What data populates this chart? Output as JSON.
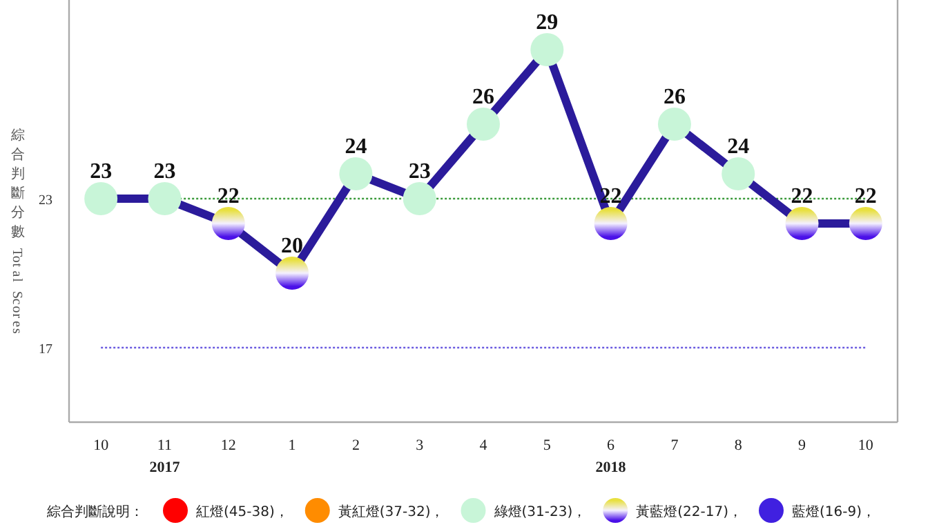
{
  "chart_data": {
    "type": "line",
    "categories": [
      "10",
      "11",
      "12",
      "1",
      "2",
      "3",
      "4",
      "5",
      "6",
      "7",
      "8",
      "9",
      "10"
    ],
    "ylabel": "綜合判斷分數 Total Scores",
    "ylim": [
      14,
      31
    ],
    "yticks": [
      17,
      23
    ],
    "legend_title": "綜合判斷說明：",
    "legend": "bottom",
    "data_labels": true,
    "grid": false,
    "series": [
      {
        "color": "#2b1b9b",
        "marker": "circle",
        "values": [
          23,
          23,
          22,
          20,
          24,
          23,
          26,
          29,
          22,
          26,
          24,
          22,
          22
        ],
        "colors": [
          "#c8f5d8",
          "#c8f5d8",
          "#e8e040",
          "#e8e040",
          "#c8f5d8",
          "#c8f5d8",
          "#c8f5d8",
          "#c8f5d8",
          "#e8e040",
          "#c8f5d8",
          "#c8f5d8",
          "#e8e040",
          "#e8e040"
        ]
      },
      {
        "name": "紅燈(45-38)，",
        "color": "#ff0000",
        "marker": "circle",
        "values": [
          null,
          null,
          null,
          null,
          null,
          null,
          null,
          null,
          null,
          null,
          null,
          null,
          null
        ]
      },
      {
        "name": "黃紅燈(37-32)，",
        "color": "#ff8c00",
        "marker": "circle",
        "values": [
          null,
          null,
          null,
          null,
          null,
          null,
          null,
          null,
          null,
          null,
          null,
          null,
          null
        ]
      },
      {
        "name": "綠燈(31-23)，",
        "color": "#c8f5d8",
        "marker": "circle",
        "values": [
          null,
          null,
          null,
          null,
          null,
          null,
          null,
          null,
          null,
          null,
          null,
          null,
          null
        ]
      },
      {
        "name": "黃藍燈(22-17)，",
        "color": "#e8e040",
        "marker": "circle",
        "values": [
          null,
          null,
          null,
          null,
          null,
          null,
          null,
          null,
          null,
          null,
          null,
          null,
          null
        ]
      },
      {
        "name": "藍燈(16-9)，",
        "color": "#4020e0",
        "marker": "circle",
        "values": [
          null,
          null,
          null,
          null,
          null,
          null,
          null,
          null,
          null,
          null,
          null,
          null,
          null
        ]
      }
    ],
    "ref_lines": [
      {
        "axis": "y",
        "value": 23,
        "color": "#3a9a3a",
        "line_style": "dotted"
      },
      {
        "axis": "y",
        "value": 17,
        "color": "#6a5ae0",
        "line_style": "dotted"
      }
    ],
    "annotations": [
      "2017",
      "2018"
    ]
  }
}
